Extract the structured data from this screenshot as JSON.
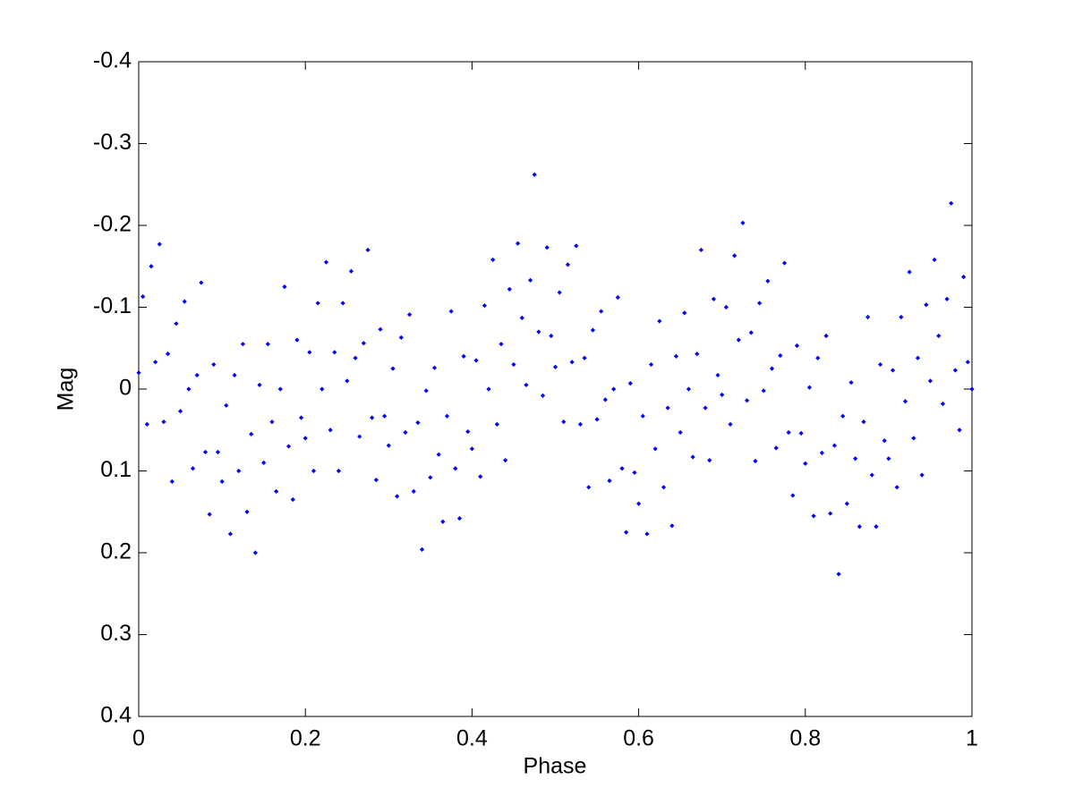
{
  "chart_data": {
    "type": "scatter",
    "x_label": "Phase",
    "y_label": "Mag",
    "xlim": [
      0,
      1
    ],
    "xticks": [
      0,
      0.2,
      0.4,
      0.6,
      0.8,
      1
    ],
    "ylim": [
      0.4,
      -0.4
    ],
    "yticks": [
      -0.4,
      -0.3,
      -0.2,
      -0.1,
      0,
      0.1,
      0.2,
      0.3,
      0.4
    ],
    "grid": false,
    "color": "#0000ff",
    "x": [
      0,
      0.005,
      0.01,
      0.015,
      0.02,
      0.025,
      0.03,
      0.035,
      0.04,
      0.045,
      0.05,
      0.055,
      0.06,
      0.065,
      0.07,
      0.075,
      0.08,
      0.085,
      0.09,
      0.095,
      0.1,
      0.105,
      0.11,
      0.115,
      0.12,
      0.125,
      0.13,
      0.135,
      0.14,
      0.145,
      0.15,
      0.155,
      0.16,
      0.165,
      0.17,
      0.175,
      0.18,
      0.185,
      0.19,
      0.195,
      0.2,
      0.205,
      0.21,
      0.215,
      0.22,
      0.225,
      0.23,
      0.235,
      0.24,
      0.245,
      0.25,
      0.255,
      0.26,
      0.265,
      0.27,
      0.275,
      0.28,
      0.285,
      0.29,
      0.295,
      0.3,
      0.305,
      0.31,
      0.315,
      0.32,
      0.325,
      0.33,
      0.335,
      0.34,
      0.345,
      0.35,
      0.355,
      0.36,
      0.365,
      0.37,
      0.375,
      0.38,
      0.385,
      0.39,
      0.395,
      0.4,
      0.405,
      0.41,
      0.415,
      0.42,
      0.425,
      0.43,
      0.435,
      0.44,
      0.445,
      0.45,
      0.455,
      0.46,
      0.465,
      0.47,
      0.475,
      0.48,
      0.485,
      0.49,
      0.495,
      0.5,
      0.505,
      0.51,
      0.515,
      0.52,
      0.525,
      0.53,
      0.535,
      0.54,
      0.545,
      0.55,
      0.555,
      0.56,
      0.565,
      0.57,
      0.575,
      0.58,
      0.585,
      0.59,
      0.595,
      0.6,
      0.605,
      0.61,
      0.615,
      0.62,
      0.625,
      0.63,
      0.635,
      0.64,
      0.645,
      0.65,
      0.655,
      0.66,
      0.665,
      0.67,
      0.675,
      0.68,
      0.685,
      0.69,
      0.695,
      0.7,
      0.705,
      0.71,
      0.715,
      0.72,
      0.725,
      0.73,
      0.735,
      0.74,
      0.745,
      0.75,
      0.755,
      0.76,
      0.765,
      0.77,
      0.775,
      0.78,
      0.785,
      0.79,
      0.795,
      0.8,
      0.805,
      0.81,
      0.815,
      0.82,
      0.825,
      0.83,
      0.835,
      0.84,
      0.845,
      0.85,
      0.855,
      0.86,
      0.865,
      0.87,
      0.875,
      0.88,
      0.885,
      0.89,
      0.895,
      0.9,
      0.905,
      0.91,
      0.915,
      0.92,
      0.925,
      0.93,
      0.935,
      0.94,
      0.945,
      0.95,
      0.955,
      0.96,
      0.965,
      0.97,
      0.975,
      0.98,
      0.985,
      0.99,
      0.995,
      1
    ],
    "values": [
      -0.02,
      -0.113,
      0.043,
      -0.15,
      -0.033,
      -0.177,
      0.04,
      -0.043,
      0.113,
      -0.08,
      0.027,
      -0.107,
      0,
      0.097,
      -0.017,
      -0.13,
      0.077,
      0.153,
      -0.03,
      0.077,
      0.113,
      0.02,
      0.177,
      -0.017,
      0.1,
      -0.055,
      0.15,
      0.055,
      0.2,
      -0.005,
      0.09,
      -0.055,
      0.04,
      0.125,
      0,
      -0.125,
      0.07,
      0.135,
      -0.06,
      0.035,
      0.06,
      -0.045,
      0.1,
      -0.105,
      0,
      -0.155,
      0.05,
      -0.045,
      0.1,
      -0.105,
      -0.01,
      -0.144,
      -0.038,
      0.058,
      -0.056,
      -0.17,
      0.035,
      0.111,
      -0.073,
      0.033,
      0.069,
      -0.025,
      0.131,
      -0.063,
      0.053,
      -0.091,
      0.125,
      0.041,
      0.196,
      0.002,
      0.108,
      -0.026,
      0.08,
      0.162,
      0.033,
      -0.095,
      0.097,
      0.158,
      -0.04,
      0.052,
      0.073,
      -0.035,
      0.107,
      -0.102,
      0,
      -0.158,
      0.043,
      -0.055,
      0.087,
      -0.122,
      -0.03,
      -0.178,
      -0.087,
      -0.005,
      -0.133,
      -0.262,
      -0.07,
      0.008,
      -0.173,
      -0.065,
      -0.027,
      -0.118,
      0.04,
      -0.152,
      -0.033,
      -0.175,
      0.043,
      -0.038,
      0.12,
      -0.072,
      0.037,
      -0.095,
      0.013,
      0.112,
      0,
      -0.112,
      0.097,
      0.175,
      -0.007,
      0.102,
      0.14,
      0.033,
      0.177,
      -0.03,
      0.073,
      -0.083,
      0.12,
      0.023,
      0.167,
      -0.04,
      0.053,
      -0.093,
      0,
      0.083,
      -0.043,
      -0.17,
      0.023,
      0.087,
      -0.11,
      -0.017,
      0.007,
      -0.1,
      0.043,
      -0.163,
      -0.06,
      -0.203,
      0.014,
      -0.069,
      0.088,
      -0.105,
      0.002,
      -0.132,
      -0.025,
      0.072,
      -0.041,
      -0.154,
      0.053,
      0.13,
      -0.053,
      0.054,
      0.091,
      -0.002,
      0.155,
      -0.038,
      0.078,
      -0.065,
      0.152,
      0.069,
      0.226,
      0.033,
      0.14,
      -0.008,
      0.085,
      0.168,
      0.04,
      -0.088,
      0.105,
      0.168,
      -0.03,
      0.063,
      0.085,
      -0.023,
      0.12,
      -0.088,
      0.015,
      -0.143,
      0.06,
      -0.038,
      0.105,
      -0.103,
      -0.01,
      -0.158,
      -0.065,
      0.018,
      -0.11,
      -0.227,
      -0.023,
      0.05,
      -0.137,
      -0.033,
      0
    ]
  }
}
